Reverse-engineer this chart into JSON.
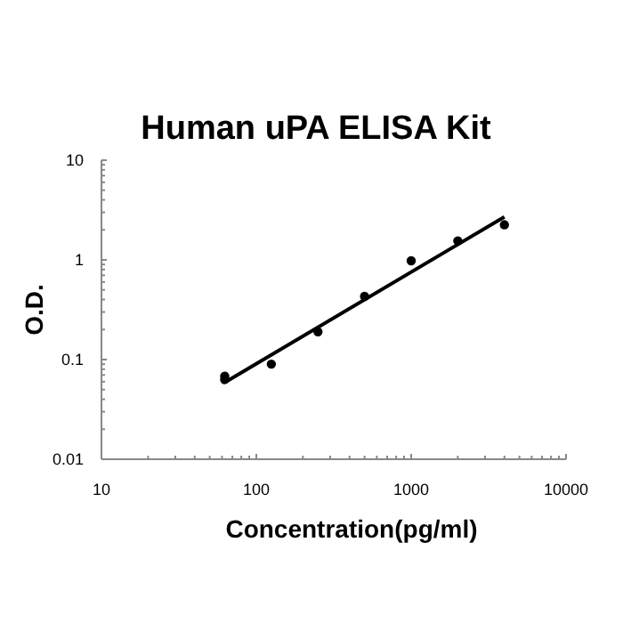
{
  "chart_data": {
    "type": "scatter",
    "title": "Human uPA ELISA Kit",
    "xlabel": "Concentration(pg/ml)",
    "ylabel": "O.D.",
    "log": "xy",
    "marker": "circle",
    "grid": false,
    "xlim": [
      10,
      10000
    ],
    "ylim": [
      0.01,
      10
    ],
    "xticks": [
      10,
      {
        "value": 20,
        "label": null
      },
      {
        "value": 30,
        "label": null
      },
      {
        "value": 40,
        "label": null
      },
      {
        "value": 50,
        "label": null
      },
      {
        "value": 60,
        "label": null
      },
      {
        "value": 70,
        "label": null
      },
      {
        "value": 80,
        "label": null
      },
      {
        "value": 90,
        "label": null
      },
      100,
      {
        "value": 200,
        "label": null
      },
      {
        "value": 300,
        "label": null
      },
      {
        "value": 400,
        "label": null
      },
      {
        "value": 500,
        "label": null
      },
      {
        "value": 600,
        "label": null
      },
      {
        "value": 700,
        "label": null
      },
      {
        "value": 800,
        "label": null
      },
      {
        "value": 900,
        "label": null
      },
      1000,
      {
        "value": 2000,
        "label": null
      },
      {
        "value": 3000,
        "label": null
      },
      {
        "value": 4000,
        "label": null
      },
      {
        "value": 5000,
        "label": null
      },
      {
        "value": 6000,
        "label": null
      },
      {
        "value": 7000,
        "label": null
      },
      {
        "value": 8000,
        "label": null
      },
      {
        "value": 9000,
        "label": null
      },
      10000
    ],
    "yticks": [
      0.01,
      {
        "value": 0.02,
        "label": null
      },
      {
        "value": 0.03,
        "label": null
      },
      {
        "value": 0.04,
        "label": null
      },
      {
        "value": 0.05,
        "label": null
      },
      {
        "value": 0.06,
        "label": null
      },
      {
        "value": 0.07,
        "label": null
      },
      {
        "value": 0.08,
        "label": null
      },
      {
        "value": 0.09,
        "label": null
      },
      0.1,
      {
        "value": 0.2,
        "label": null
      },
      {
        "value": 0.3,
        "label": null
      },
      {
        "value": 0.4,
        "label": null
      },
      {
        "value": 0.5,
        "label": null
      },
      {
        "value": 0.6,
        "label": null
      },
      {
        "value": 0.7,
        "label": null
      },
      {
        "value": 0.8,
        "label": null
      },
      {
        "value": 0.9,
        "label": null
      },
      1,
      {
        "value": 2,
        "label": null
      },
      {
        "value": 3,
        "label": null
      },
      {
        "value": 4,
        "label": null
      },
      {
        "value": 5,
        "label": null
      },
      {
        "value": 6,
        "label": null
      },
      {
        "value": 7,
        "label": null
      },
      {
        "value": 8,
        "label": null
      },
      {
        "value": 9,
        "label": null
      },
      10
    ],
    "series": [
      {
        "color": "#000000",
        "x": [
          62.5,
          62.5,
          125,
          250,
          500,
          1000,
          2000,
          4000
        ],
        "values": [
          0.068,
          0.063,
          0.09,
          0.19,
          0.43,
          0.98,
          1.55,
          2.25
        ]
      },
      {
        "type": "line",
        "color": "#000000",
        "marker": "none",
        "x": [
          65,
          4000
        ],
        "values": [
          0.061,
          2.7
        ]
      }
    ]
  }
}
